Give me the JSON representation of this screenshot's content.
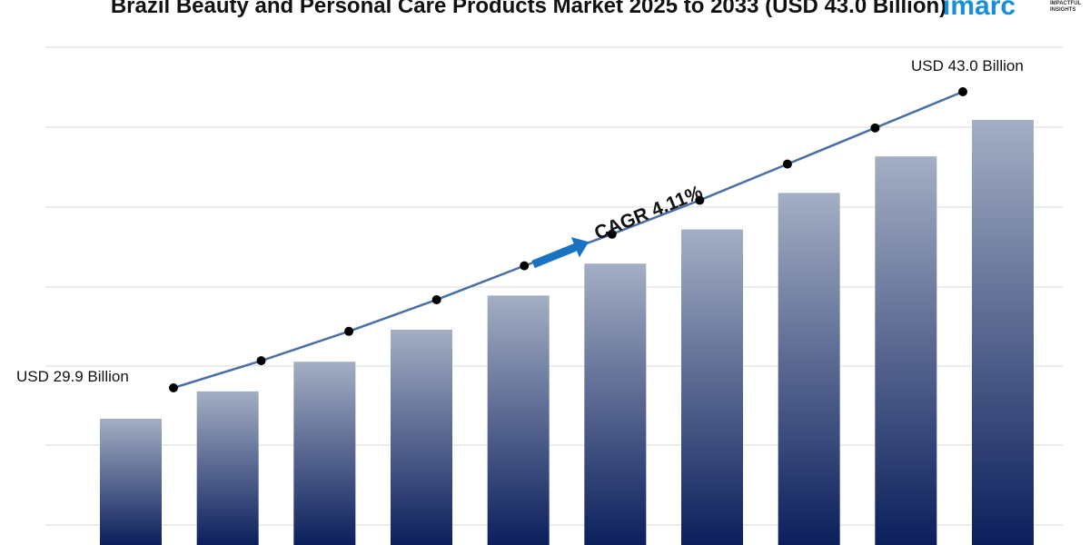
{
  "chart_data": {
    "type": "bar",
    "title": "Brazil Beauty and Personal Care Products Market 2025 to 2033 (USD 43.0 Billion)",
    "xlabel": "",
    "ylabel": "",
    "values": [
      29.9,
      31.1,
      32.4,
      33.8,
      35.3,
      36.7,
      38.2,
      39.8,
      41.4,
      43.0
    ],
    "units": "USD Billion",
    "grid": true,
    "start_label": "USD 29.9 Billion",
    "end_label": "USD 43.0 Billion",
    "cagr_label": "CAGR 4.11%",
    "colors": {
      "bar_top": "#a4aec4",
      "bar_bottom": "#0c1f5c",
      "line": "#4a6fa5",
      "marker": "#000000",
      "arrow": "#1a72c2",
      "grid": "#d9d9d9"
    }
  },
  "logo": {
    "word": "imarc",
    "tagline_1": "IMPACTFUL",
    "tagline_2": "INSIGHTS",
    "color": "#1a8fd8"
  }
}
